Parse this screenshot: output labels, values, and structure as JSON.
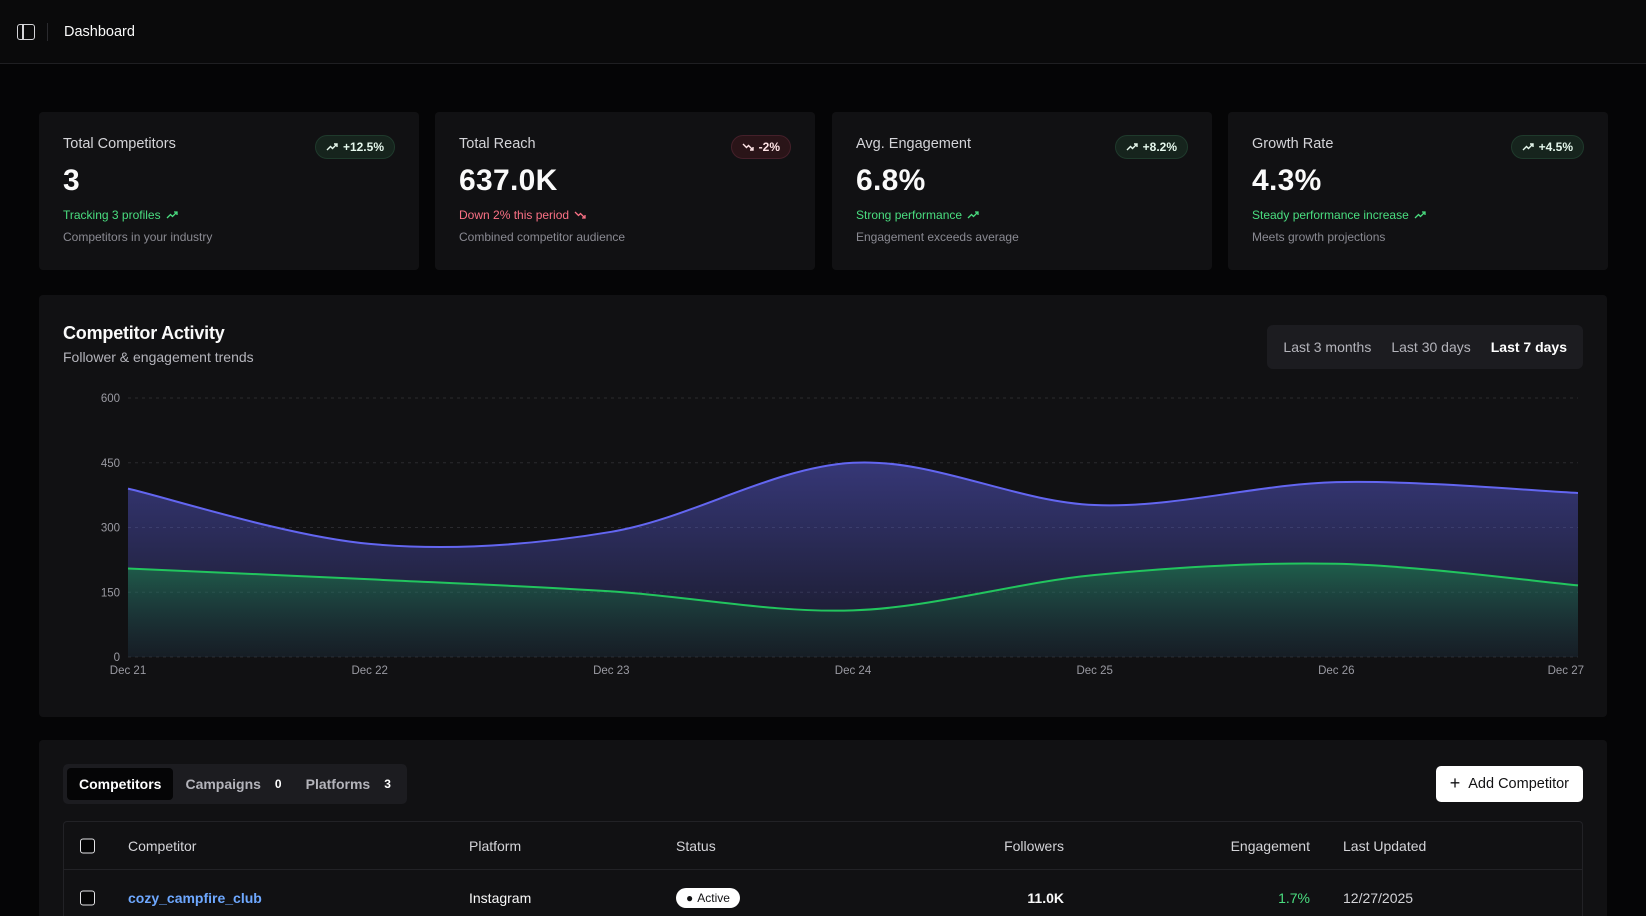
{
  "header": {
    "title": "Dashboard",
    "toggle_icon": "sidebar-toggle-icon"
  },
  "cards": [
    {
      "label": "Total Competitors",
      "value": "3",
      "badge": "+12.5%",
      "badge_direction": "up",
      "trend_text": "Tracking 3 profiles",
      "trend_direction": "up",
      "sub_text": "Competitors in your industry"
    },
    {
      "label": "Total Reach",
      "value": "637.0K",
      "badge": "-2%",
      "badge_direction": "down",
      "trend_text": "Down 2% this period",
      "trend_direction": "down",
      "sub_text": "Combined competitor audience"
    },
    {
      "label": "Avg. Engagement",
      "value": "6.8%",
      "badge": "+8.2%",
      "badge_direction": "up",
      "trend_text": "Strong performance",
      "trend_direction": "up",
      "sub_text": "Engagement exceeds average"
    },
    {
      "label": "Growth Rate",
      "value": "4.3%",
      "badge": "+4.5%",
      "badge_direction": "up",
      "trend_text": "Steady performance increase",
      "trend_direction": "up",
      "sub_text": "Meets growth projections"
    }
  ],
  "activity": {
    "title": "Competitor Activity",
    "subtitle": "Follower & engagement trends",
    "ranges": [
      "Last 3 months",
      "Last 30 days",
      "Last 7 days"
    ],
    "selected_range": "Last 7 days"
  },
  "chart_data": {
    "type": "area",
    "x": [
      "Dec 21",
      "Dec 22",
      "Dec 23",
      "Dec 24",
      "Dec 25",
      "Dec 26",
      "Dec 27"
    ],
    "series": [
      {
        "values": [
          390,
          262,
          290,
          450,
          352,
          405,
          380
        ],
        "color": "#6366f1"
      },
      {
        "values": [
          205,
          180,
          152,
          108,
          190,
          216,
          166
        ],
        "color": "#22c55e"
      }
    ],
    "yticks": [
      0,
      150,
      300,
      450,
      600
    ],
    "ylim": [
      0,
      600
    ],
    "grid": true,
    "stacked": false
  },
  "tabs": [
    {
      "label": "Competitors",
      "count": ""
    },
    {
      "label": "Campaigns",
      "count": "0"
    },
    {
      "label": "Platforms",
      "count": "3"
    }
  ],
  "add_button": {
    "label": "Add Competitor"
  },
  "table": {
    "headers": [
      "Competitor",
      "Platform",
      "Status",
      "Followers",
      "Engagement",
      "Last Updated"
    ],
    "rows": [
      {
        "competitor": "cozy_campfire_club",
        "platform": "Instagram",
        "status": "Active",
        "followers": "11.0K",
        "engagement": "1.7%",
        "last_updated": "12/27/2025"
      }
    ]
  }
}
